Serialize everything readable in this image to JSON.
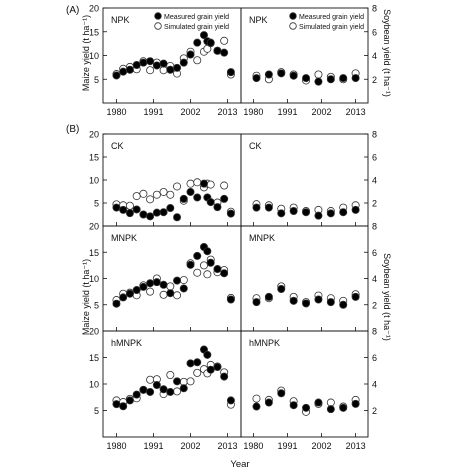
{
  "figure": {
    "panel_a_label": "(A)",
    "panel_b_label": "(B)",
    "xlabel": "Year",
    "ylabel_left": "Maize yield (t ha⁻¹)",
    "ylabel_right": "Soybean yield (t ha⁻¹)",
    "legend": {
      "measured": "Measured grain yield",
      "simulated": "Simulated grain yield"
    },
    "colors": {
      "measured": "#000000",
      "simulated": "#ffffff",
      "outline": "#333333"
    }
  },
  "chart_data": {
    "type": "scatter",
    "x_ticks": [
      1980,
      1991,
      2002,
      2013
    ],
    "xlim": [
      1976,
      2017
    ],
    "maize_ylim": [
      0,
      20
    ],
    "maize_yticks": [
      5,
      10,
      15,
      20
    ],
    "soy_ylim": [
      0,
      8
    ],
    "soy_yticks": [
      2,
      4,
      6,
      8
    ],
    "treatments": [
      {
        "label": "NPK",
        "maize": {
          "measured_x": [
            1980,
            1982,
            1984,
            1986,
            1988,
            1990,
            1992,
            1994,
            1996,
            1998,
            2000,
            2002,
            2004,
            2006,
            2007,
            2008,
            2010,
            2012,
            2014
          ],
          "measured_y": [
            5.8,
            6.6,
            7.0,
            8.0,
            8.5,
            8.8,
            7.9,
            8.3,
            7.0,
            7.4,
            8.5,
            10.2,
            12.7,
            14.3,
            13.0,
            12.7,
            11.0,
            10.6,
            6.5
          ],
          "simulated_x": [
            1980,
            1982,
            1984,
            1986,
            1988,
            1990,
            1992,
            1994,
            1996,
            1998,
            2000,
            2002,
            2004,
            2006,
            2007,
            2008,
            2010,
            2012,
            2014
          ],
          "simulated_y": [
            6.1,
            7.2,
            7.6,
            7.1,
            8.8,
            6.9,
            8.5,
            6.9,
            7.8,
            6.2,
            9.4,
            10.8,
            9.0,
            10.8,
            11.4,
            12.6,
            11.0,
            13.1,
            6.0
          ]
        },
        "soybean": {
          "measured_x": [
            1981,
            1985,
            1989,
            1993,
            1997,
            2001,
            2005,
            2009,
            2013
          ],
          "measured_y": [
            2.1,
            2.4,
            2.5,
            2.3,
            2.1,
            1.8,
            2.0,
            2.1,
            2.1
          ],
          "simulated_x": [
            1981,
            1985,
            1989,
            1993,
            1997,
            2001,
            2005,
            2009,
            2013
          ],
          "simulated_y": [
            2.3,
            2.0,
            2.6,
            2.4,
            1.9,
            2.4,
            2.2,
            2.0,
            2.5
          ]
        }
      },
      {
        "label": "CK",
        "maize": {
          "measured_x": [
            1980,
            1982,
            1984,
            1986,
            1988,
            1990,
            1992,
            1994,
            1996,
            1998,
            2000,
            2002,
            2004,
            2006,
            2007,
            2008,
            2010,
            2012,
            2014
          ],
          "measured_y": [
            4.0,
            3.5,
            2.8,
            3.6,
            2.5,
            2.1,
            2.9,
            3.0,
            3.9,
            1.9,
            5.9,
            7.4,
            6.2,
            9.2,
            6.2,
            5.2,
            4.1,
            5.9,
            2.7
          ],
          "simulated_x": [
            1980,
            1982,
            1984,
            1986,
            1988,
            1990,
            1992,
            1994,
            1996,
            1998,
            2000,
            2002,
            2004,
            2006,
            2007,
            2008,
            2010,
            2012,
            2014
          ],
          "simulated_y": [
            4.7,
            4.5,
            4.4,
            6.5,
            7.0,
            5.8,
            6.8,
            7.4,
            6.8,
            8.6,
            5.5,
            9.2,
            9.5,
            8.4,
            9.2,
            9.0,
            5.1,
            8.8,
            3.1
          ]
        },
        "soybean": {
          "measured_x": [
            1981,
            1985,
            1989,
            1993,
            1997,
            2001,
            2005,
            2009,
            2013
          ],
          "measured_y": [
            1.6,
            1.6,
            1.1,
            1.3,
            1.2,
            0.9,
            1.1,
            1.2,
            1.4
          ],
          "simulated_x": [
            1981,
            1985,
            1989,
            1993,
            1997,
            2001,
            2005,
            2009,
            2013
          ],
          "simulated_y": [
            1.9,
            1.8,
            1.5,
            1.6,
            1.3,
            1.4,
            1.3,
            1.6,
            1.8
          ]
        }
      },
      {
        "label": "MNPK",
        "maize": {
          "measured_x": [
            1980,
            1982,
            1984,
            1986,
            1988,
            1990,
            1992,
            1994,
            1996,
            1998,
            2000,
            2002,
            2004,
            2006,
            2007,
            2008,
            2010,
            2012,
            2014
          ],
          "measured_y": [
            5.2,
            6.4,
            7.1,
            7.8,
            8.4,
            9.1,
            9.3,
            8.8,
            7.2,
            9.6,
            8.1,
            12.6,
            14.3,
            16.0,
            15.2,
            13.0,
            11.8,
            11.0,
            6.0
          ],
          "simulated_x": [
            1980,
            1982,
            1984,
            1986,
            1988,
            1990,
            1992,
            1994,
            1996,
            1998,
            2000,
            2002,
            2004,
            2006,
            2007,
            2008,
            2010,
            2012,
            2014
          ],
          "simulated_y": [
            5.9,
            7.1,
            7.3,
            6.8,
            8.7,
            7.5,
            10.0,
            6.9,
            8.5,
            6.8,
            9.7,
            12.9,
            11.1,
            12.5,
            10.8,
            13.6,
            11.2,
            11.6,
            6.3
          ]
        },
        "soybean": {
          "measured_x": [
            1981,
            1985,
            1989,
            1993,
            1997,
            2001,
            2005,
            2009,
            2013
          ],
          "measured_y": [
            2.2,
            2.6,
            3.2,
            2.3,
            2.1,
            2.4,
            2.2,
            2.0,
            2.6
          ],
          "simulated_x": [
            1981,
            1985,
            1989,
            1993,
            1997,
            2001,
            2005,
            2009,
            2013
          ],
          "simulated_y": [
            2.5,
            2.5,
            3.4,
            2.6,
            2.2,
            2.7,
            2.5,
            2.3,
            2.8
          ]
        }
      },
      {
        "label": "hMNPK",
        "maize": {
          "measured_x": [
            1980,
            1982,
            1984,
            1986,
            1988,
            1990,
            1992,
            1994,
            1996,
            1998,
            2000,
            2002,
            2004,
            2006,
            2007,
            2008,
            2010,
            2012,
            2014
          ],
          "measured_y": [
            6.2,
            5.8,
            6.9,
            8.0,
            8.9,
            8.5,
            9.8,
            9.0,
            8.5,
            10.5,
            9.2,
            13.9,
            14.1,
            16.5,
            15.5,
            12.7,
            13.2,
            11.4,
            6.9
          ],
          "simulated_x": [
            1980,
            1982,
            1984,
            1986,
            1988,
            1990,
            1992,
            1994,
            1996,
            1998,
            2000,
            2002,
            2004,
            2006,
            2007,
            2008,
            2010,
            2012,
            2014
          ],
          "simulated_y": [
            6.9,
            6.6,
            7.2,
            7.3,
            8.9,
            10.8,
            10.9,
            8.1,
            11.7,
            8.6,
            10.4,
            10.5,
            12.1,
            12.8,
            12.0,
            13.6,
            13.3,
            12.2,
            6.1
          ]
        },
        "soybean": {
          "measured_x": [
            1981,
            1985,
            1989,
            1993,
            1997,
            2001,
            2005,
            2009,
            2013
          ],
          "measured_y": [
            2.3,
            2.6,
            3.3,
            2.4,
            2.2,
            2.6,
            2.1,
            2.2,
            2.5
          ],
          "simulated_x": [
            1981,
            1985,
            1989,
            1993,
            1997,
            2001,
            2005,
            2009,
            2013
          ],
          "simulated_y": [
            2.9,
            2.8,
            3.5,
            2.7,
            1.9,
            2.5,
            2.6,
            2.3,
            2.8
          ]
        }
      }
    ]
  }
}
